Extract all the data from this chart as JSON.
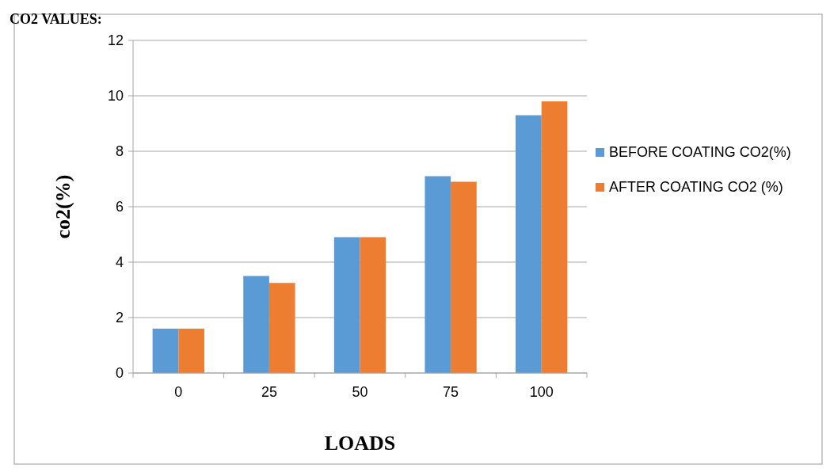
{
  "chart_data": {
    "type": "bar",
    "title": "CO2 VALUES:",
    "xlabel": "LOADS",
    "ylabel": "co2(%)",
    "categories": [
      "0",
      "25",
      "50",
      "75",
      "100"
    ],
    "series": [
      {
        "name": "BEFORE COATING CO2(%)",
        "color": "#5b9bd5",
        "values": [
          1.6,
          3.5,
          4.9,
          7.1,
          9.3
        ]
      },
      {
        "name": "AFTER COATING CO2 (%)",
        "color": "#ed7d31",
        "values": [
          1.6,
          3.25,
          4.9,
          6.9,
          9.8
        ]
      }
    ],
    "ylim": [
      0,
      12
    ],
    "yticks": [
      0,
      2,
      4,
      6,
      8,
      10,
      12
    ],
    "grid": "y",
    "legend": "right"
  }
}
